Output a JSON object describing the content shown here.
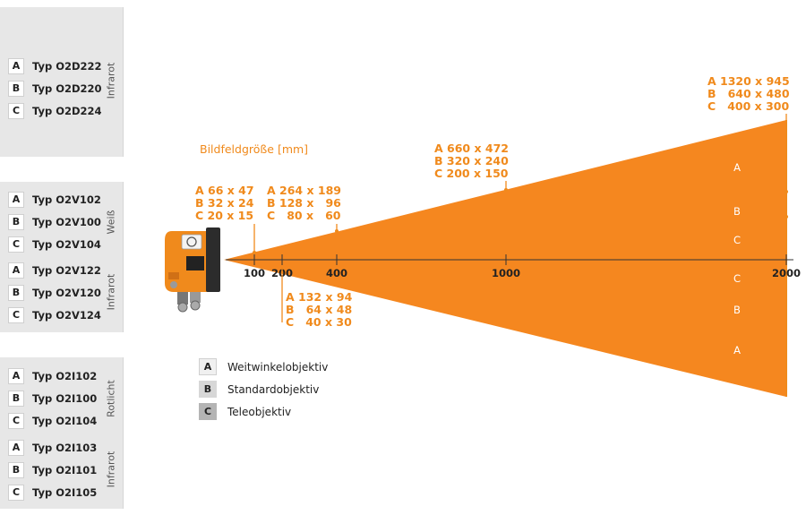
{
  "panels": [
    {
      "groups": [
        {
          "label": "Infrarot",
          "rows": [
            {
              "letter": "A",
              "text": "Typ O2D222"
            },
            {
              "letter": "B",
              "text": "Typ O2D220"
            },
            {
              "letter": "C",
              "text": "Typ O2D224"
            }
          ]
        }
      ]
    },
    {
      "groups": [
        {
          "label": "Weiß",
          "rows": [
            {
              "letter": "A",
              "text": "Typ O2V102"
            },
            {
              "letter": "B",
              "text": "Typ O2V100"
            },
            {
              "letter": "C",
              "text": "Typ O2V104"
            }
          ]
        },
        {
          "label": "Infrarot",
          "rows": [
            {
              "letter": "A",
              "text": "Typ O2V122"
            },
            {
              "letter": "B",
              "text": "Typ O2V120"
            },
            {
              "letter": "C",
              "text": "Typ O2V124"
            }
          ]
        }
      ]
    },
    {
      "groups": [
        {
          "label": "Rotlicht",
          "rows": [
            {
              "letter": "A",
              "text": "Typ O2I102"
            },
            {
              "letter": "B",
              "text": "Typ O2I100"
            },
            {
              "letter": "C",
              "text": "Typ O2I104"
            }
          ]
        },
        {
          "label": "Infrarot",
          "rows": [
            {
              "letter": "A",
              "text": "Typ O2I103"
            },
            {
              "letter": "B",
              "text": "Typ O2I101"
            },
            {
              "letter": "C",
              "text": "Typ O2I105"
            }
          ]
        }
      ]
    }
  ],
  "diagram": {
    "title": "Bildfeldgröße [mm]",
    "colors": {
      "accent": "#f08a1c",
      "cone": "#f5871f",
      "axis": "#333333"
    },
    "ticks": [
      "100",
      "200",
      "400",
      "1000",
      "2000"
    ],
    "distance_labels": {
      "d100": [
        "A 66 x 47",
        "B 32 x 24",
        "C 20 x 15"
      ],
      "d200": [
        "A 132 x 94",
        "B   64 x 48",
        "C   40 x 30"
      ],
      "d400": [
        "A 264 x 189",
        "B 128 x   96",
        "C   80 x   60"
      ],
      "d1000": [
        "A 660 x 472",
        "B 320 x 240",
        "C 200 x 150"
      ],
      "d2000": [
        "A 1320 x 945",
        "B   640 x 480",
        "C   400 x 300"
      ]
    },
    "zones_top": [
      "A",
      "B",
      "C"
    ],
    "zones_bottom": [
      "C",
      "B",
      "A"
    ],
    "camera_icon": "orange-vision-sensor"
  },
  "legend": [
    {
      "letter": "A",
      "text": "Weitwinkelobjektiv",
      "color": "#f0f0f0"
    },
    {
      "letter": "B",
      "text": "Standardobjektiv",
      "color": "#d7d7d7"
    },
    {
      "letter": "C",
      "text": "Teleobjektiv",
      "color": "#b4b4b4"
    }
  ]
}
